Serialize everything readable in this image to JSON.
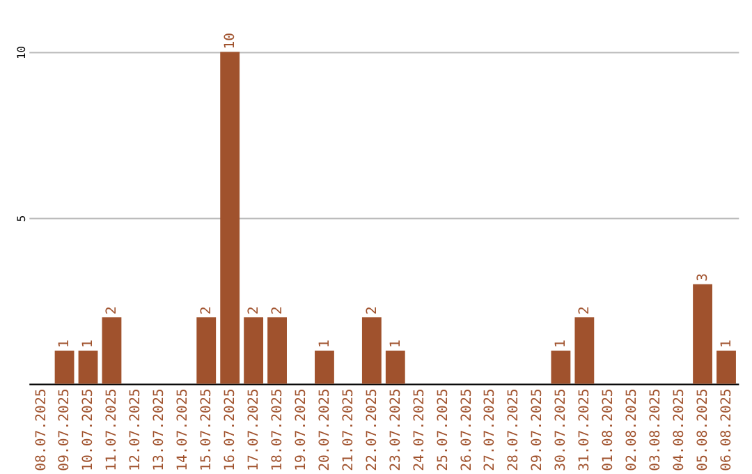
{
  "chart_data": {
    "type": "bar",
    "categories": [
      "08.07.2025",
      "09.07.2025",
      "10.07.2025",
      "11.07.2025",
      "12.07.2025",
      "13.07.2025",
      "14.07.2025",
      "15.07.2025",
      "16.07.2025",
      "17.07.2025",
      "18.07.2025",
      "19.07.2025",
      "20.07.2025",
      "21.07.2025",
      "22.07.2025",
      "23.07.2025",
      "24.07.2025",
      "25.07.2025",
      "26.07.2025",
      "27.07.2025",
      "28.07.2025",
      "29.07.2025",
      "30.07.2025",
      "31.07.2025",
      "01.08.2025",
      "02.08.2025",
      "03.08.2025",
      "04.08.2025",
      "05.08.2025",
      "06.08.2025"
    ],
    "values": [
      0,
      1,
      1,
      2,
      0,
      0,
      0,
      2,
      10,
      2,
      2,
      0,
      1,
      0,
      2,
      1,
      0,
      0,
      0,
      0,
      0,
      0,
      1,
      2,
      0,
      0,
      0,
      0,
      3,
      1
    ],
    "value_labels": [
      null,
      "1",
      "1",
      "2",
      null,
      null,
      null,
      "2",
      "10",
      "2",
      "2",
      null,
      "1",
      null,
      "2",
      "1",
      null,
      null,
      null,
      null,
      null,
      null,
      "1",
      "2",
      null,
      null,
      null,
      null,
      "3",
      "1"
    ],
    "color": "#a0522d",
    "ylim": [
      0,
      10
    ],
    "yticks": [
      {
        "value": 0,
        "label": null
      },
      5,
      10
    ],
    "grid": "y"
  }
}
